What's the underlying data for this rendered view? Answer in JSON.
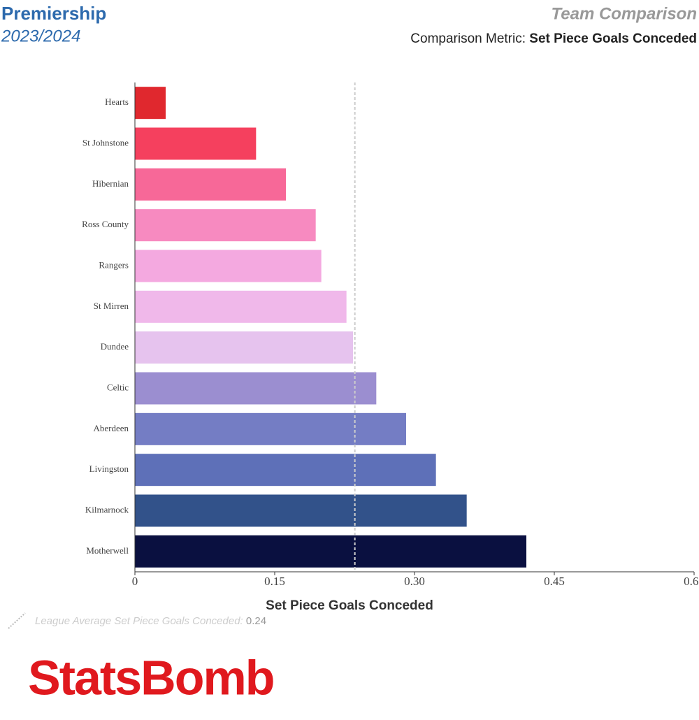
{
  "header": {
    "competition": "Premiership",
    "season": "2023/2024",
    "title": "Team Comparison",
    "metric_label": "Comparison Metric:",
    "metric": "Set Piece Goals Conceded"
  },
  "chart_data": {
    "type": "hbar",
    "xlabel": "Set Piece Goals Conceded",
    "categories": [
      "Hearts",
      "St Johnstone",
      "Hibernian",
      "Ross County",
      "Rangers",
      "St Mirren",
      "Dundee",
      "Celtic",
      "Aberdeen",
      "Livingston",
      "Kilmarnock",
      "Motherwell"
    ],
    "values": [
      0.033,
      0.13,
      0.162,
      0.194,
      0.2,
      0.227,
      0.234,
      0.259,
      0.291,
      0.323,
      0.356,
      0.42
    ],
    "colors": [
      "#e0282e",
      "#f5405e",
      "#f76898",
      "#f78ac0",
      "#f4a9e0",
      "#f0b8ea",
      "#e6c3ee",
      "#9b8ed0",
      "#747dc4",
      "#5e70b8",
      "#32528a",
      "#0a1040"
    ],
    "xlim": [
      0,
      0.6
    ],
    "xticks": [
      0,
      0.15,
      {
        "value": 0.3,
        "label": "0.30"
      },
      0.45,
      {
        "value": 0.6,
        "label": "0.60"
      }
    ],
    "average_line": {
      "label": "League Average Set Piece Goals Conceded:",
      "value": 0.236,
      "value_label": "0.24"
    }
  },
  "logo": "StatsBomb"
}
